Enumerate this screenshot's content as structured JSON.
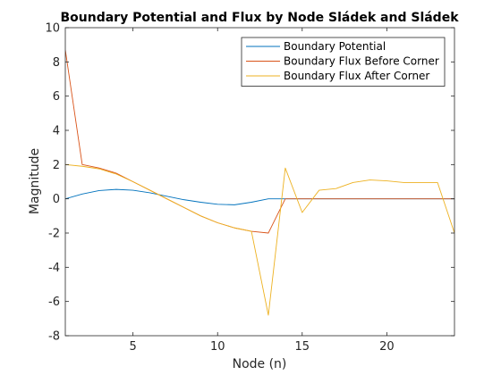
{
  "chart_data": {
    "type": "line",
    "title": "Boundary Potential and Flux by Node Sládek and Sládek",
    "xlabel": "Node (n)",
    "ylabel": "Magnitude",
    "xlim": [
      1,
      24
    ],
    "ylim": [
      -8,
      10
    ],
    "xticks": [
      5,
      10,
      15,
      20
    ],
    "yticks": [
      -8,
      -6,
      -4,
      -2,
      0,
      2,
      4,
      6,
      8,
      10
    ],
    "grid": false,
    "legend_position": "top-right",
    "series": [
      {
        "name": "Boundary Potential",
        "color": "#0072BD",
        "x": [
          1,
          2,
          3,
          4,
          5,
          6,
          7,
          8,
          9,
          10,
          11,
          12,
          13,
          14,
          15,
          16,
          17,
          18,
          19,
          20,
          21,
          22,
          23,
          24
        ],
        "y": [
          0.0,
          0.28,
          0.48,
          0.55,
          0.5,
          0.35,
          0.15,
          -0.05,
          -0.2,
          -0.32,
          -0.35,
          -0.2,
          0.0,
          0.0,
          0.0,
          0.0,
          0.0,
          0.0,
          0.0,
          0.0,
          0.0,
          0.0,
          0.0,
          0.0
        ]
      },
      {
        "name": "Boundary Flux Before Corner",
        "color": "#D95319",
        "x": [
          1,
          2,
          3,
          4,
          5,
          6,
          7,
          8,
          9,
          10,
          11,
          12,
          13,
          14,
          15,
          16,
          17,
          18,
          19,
          20,
          21,
          22,
          23,
          24
        ],
        "y": [
          8.7,
          2.0,
          1.8,
          1.5,
          1.0,
          0.5,
          0.0,
          -0.5,
          -1.0,
          -1.4,
          -1.7,
          -1.9,
          -2.0,
          0.0,
          0.0,
          0.0,
          0.0,
          0.0,
          0.0,
          0.0,
          0.0,
          0.0,
          0.0,
          0.0
        ]
      },
      {
        "name": "Boundary Flux After Corner",
        "color": "#EDB120",
        "x": [
          1,
          2,
          3,
          4,
          5,
          6,
          7,
          8,
          9,
          10,
          11,
          12,
          13,
          14,
          15,
          16,
          17,
          18,
          19,
          20,
          21,
          22,
          23,
          24
        ],
        "y": [
          2.0,
          1.9,
          1.75,
          1.45,
          1.0,
          0.5,
          0.0,
          -0.5,
          -1.0,
          -1.4,
          -1.7,
          -1.9,
          -6.8,
          1.8,
          -0.8,
          0.5,
          0.6,
          0.95,
          1.1,
          1.05,
          0.95,
          0.95,
          0.95,
          -2.0
        ]
      }
    ]
  }
}
